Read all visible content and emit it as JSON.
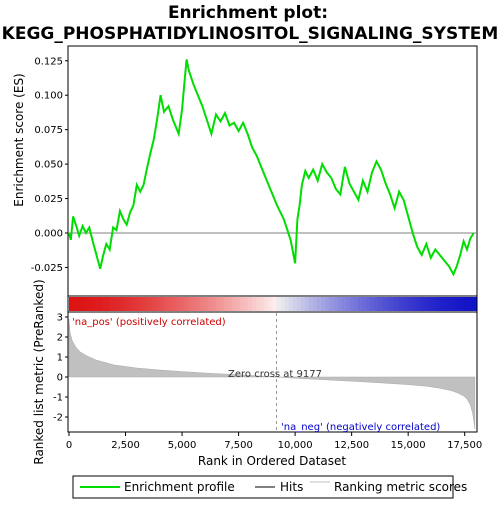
{
  "chart_data": {
    "type": "line",
    "title_line1": "Enrichment plot:",
    "title_line2": "KEGG_PHOSPHATIDYLINOSITOL_SIGNALING_SYSTEM",
    "es_ylabel": "Enrichment score (ES)",
    "rank_ylabel": "Ranked list metric (PreRanked)",
    "xlabel": "Rank in Ordered Dataset",
    "xlim": [
      0,
      18000
    ],
    "es_ylim": [
      -0.045,
      0.135
    ],
    "rank_ylim": [
      -2.7,
      3.2
    ],
    "x_ticks": [
      0,
      2500,
      5000,
      7500,
      10000,
      12500,
      15000,
      17500
    ],
    "x_tick_labels": [
      "0",
      "2,500",
      "5,000",
      "7,500",
      "10,000",
      "12,500",
      "15,000",
      "17,500"
    ],
    "es_ticks": [
      -0.025,
      0.0,
      0.025,
      0.05,
      0.075,
      0.1,
      0.125
    ],
    "es_tick_labels": [
      "-0.025",
      "0.000",
      "0.025",
      "0.050",
      "0.075",
      "0.100",
      "0.125"
    ],
    "rank_ticks": [
      -2,
      -1,
      0,
      1,
      2,
      3
    ],
    "rank_tick_labels": [
      "-2",
      "-1",
      "0",
      "1",
      "2",
      "3"
    ],
    "grid": false,
    "zero_cross": 9177,
    "zero_cross_label": "Zero cross at 9177",
    "pos_label": "'na_pos' (positively correlated)",
    "neg_label": "'na_neg' (negatively correlated)",
    "colors": {
      "es_line": "#00dd00",
      "hits": "#000000",
      "ranking_fill": "#c0c0c0",
      "pos_label": "#cc0000",
      "neg_label": "#0000cc",
      "zero_line": "#999999"
    },
    "legend": {
      "placement": "bottom",
      "entries": [
        "Enrichment profile",
        "Hits",
        "Ranking metric scores"
      ]
    },
    "series": [
      {
        "name": "Enrichment profile",
        "x": [
          0,
          80,
          180,
          300,
          450,
          600,
          750,
          900,
          1050,
          1200,
          1380,
          1500,
          1650,
          1800,
          1950,
          2100,
          2250,
          2400,
          2550,
          2700,
          2850,
          3000,
          3150,
          3300,
          3450,
          3600,
          3750,
          3900,
          4050,
          4200,
          4400,
          4600,
          4850,
          5000,
          5100,
          5200,
          5300,
          5500,
          5700,
          5900,
          6100,
          6300,
          6500,
          6700,
          6900,
          7100,
          7300,
          7500,
          7700,
          7900,
          8100,
          8300,
          8500,
          8700,
          9000,
          9200,
          9500,
          9800,
          10000,
          10100,
          10200,
          10300,
          10450,
          10600,
          10800,
          11000,
          11200,
          11400,
          11600,
          11800,
          12000,
          12200,
          12400,
          12600,
          12800,
          13000,
          13200,
          13400,
          13600,
          13800,
          14000,
          14200,
          14400,
          14600,
          14800,
          15000,
          15200,
          15400,
          15600,
          15800,
          16000,
          16200,
          16400,
          16600,
          16800,
          17000,
          17150,
          17300,
          17450,
          17600,
          17750,
          17900
        ],
        "values": [
          0.0,
          -0.005,
          0.012,
          0.006,
          -0.002,
          0.005,
          0.0,
          0.004,
          -0.006,
          -0.015,
          -0.026,
          -0.017,
          -0.008,
          -0.012,
          0.004,
          0.002,
          0.016,
          0.01,
          0.006,
          0.015,
          0.02,
          0.035,
          0.03,
          0.035,
          0.047,
          0.058,
          0.068,
          0.083,
          0.1,
          0.088,
          0.092,
          0.082,
          0.072,
          0.09,
          0.108,
          0.126,
          0.118,
          0.108,
          0.1,
          0.092,
          0.082,
          0.072,
          0.086,
          0.081,
          0.087,
          0.078,
          0.08,
          0.074,
          0.08,
          0.072,
          0.062,
          0.056,
          0.048,
          0.04,
          0.028,
          0.02,
          0.01,
          -0.005,
          -0.022,
          0.01,
          0.02,
          0.035,
          0.045,
          0.04,
          0.046,
          0.038,
          0.05,
          0.044,
          0.04,
          0.032,
          0.028,
          0.048,
          0.036,
          0.03,
          0.024,
          0.038,
          0.03,
          0.044,
          0.052,
          0.046,
          0.036,
          0.028,
          0.018,
          0.03,
          0.024,
          0.012,
          0.0,
          -0.01,
          -0.016,
          -0.008,
          -0.018,
          -0.012,
          -0.016,
          -0.02,
          -0.024,
          -0.03,
          -0.024,
          -0.016,
          -0.006,
          -0.012,
          -0.004,
          0.0
        ]
      },
      {
        "name": "Hits",
        "x": [
          140,
          230,
          390,
          700,
          820,
          1450,
          1560,
          1700,
          1820,
          2010,
          2100,
          2200,
          2330,
          2560,
          2700,
          2870,
          2960,
          3050,
          3150,
          3380,
          3470,
          3560,
          3660,
          3770,
          3850,
          3920,
          4010,
          4120,
          4400,
          4500,
          4880,
          4960,
          5040,
          5120,
          5190,
          5300,
          6350,
          6600,
          6950,
          7350,
          7500,
          7780,
          8350,
          9200,
          10050,
          10130,
          10230,
          10320,
          10400,
          10520,
          10650,
          10850,
          11050,
          11250,
          11400,
          11600,
          11900,
          12150,
          12300,
          12750,
          13150,
          13350,
          13500,
          13650,
          14450,
          14550,
          15400,
          15700,
          15900,
          16100,
          16300,
          16500,
          16700,
          17000,
          17150,
          17250,
          17350,
          17450,
          17600,
          17800
        ]
      },
      {
        "name": "Ranking metric scores",
        "x": [
          0,
          50,
          150,
          300,
          500,
          800,
          1200,
          2000,
          3000,
          4000,
          5000,
          6000,
          7000,
          8000,
          9177,
          10000,
          11000,
          12000,
          13000,
          14000,
          15000,
          15800,
          16400,
          16900,
          17200,
          17450,
          17600,
          17750,
          17850,
          17950
        ],
        "values": [
          2.9,
          2.2,
          1.8,
          1.5,
          1.25,
          1.05,
          0.85,
          0.6,
          0.45,
          0.35,
          0.27,
          0.2,
          0.14,
          0.08,
          0.0,
          -0.06,
          -0.12,
          -0.18,
          -0.24,
          -0.31,
          -0.38,
          -0.46,
          -0.56,
          -0.68,
          -0.8,
          -0.95,
          -1.1,
          -1.4,
          -1.8,
          -2.6
        ]
      }
    ]
  }
}
